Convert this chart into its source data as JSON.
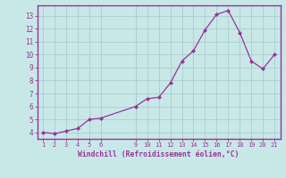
{
  "x": [
    1,
    2,
    3,
    4,
    5,
    6,
    9,
    10,
    11,
    12,
    13,
    14,
    15,
    16,
    17,
    18,
    19,
    20,
    21
  ],
  "y": [
    4.0,
    3.9,
    4.1,
    4.3,
    5.0,
    5.1,
    6.0,
    6.6,
    6.7,
    7.8,
    9.5,
    10.3,
    11.9,
    13.1,
    13.4,
    11.7,
    9.5,
    8.9,
    10.0
  ],
  "line_color": "#993399",
  "marker_color": "#993399",
  "bg_color": "#c8e8e8",
  "grid_color": "#aacccc",
  "tick_color": "#993399",
  "xlabel": "Windchill (Refroidissement éolien,°C)",
  "xlabel_color": "#993399",
  "xticks": [
    1,
    2,
    3,
    4,
    5,
    6,
    9,
    10,
    11,
    12,
    13,
    14,
    15,
    16,
    17,
    18,
    19,
    20,
    21
  ],
  "yticks": [
    4,
    5,
    6,
    7,
    8,
    9,
    10,
    11,
    12,
    13
  ],
  "ylim": [
    3.5,
    13.8
  ],
  "xlim": [
    0.5,
    21.5
  ],
  "spine_color": "#993399"
}
